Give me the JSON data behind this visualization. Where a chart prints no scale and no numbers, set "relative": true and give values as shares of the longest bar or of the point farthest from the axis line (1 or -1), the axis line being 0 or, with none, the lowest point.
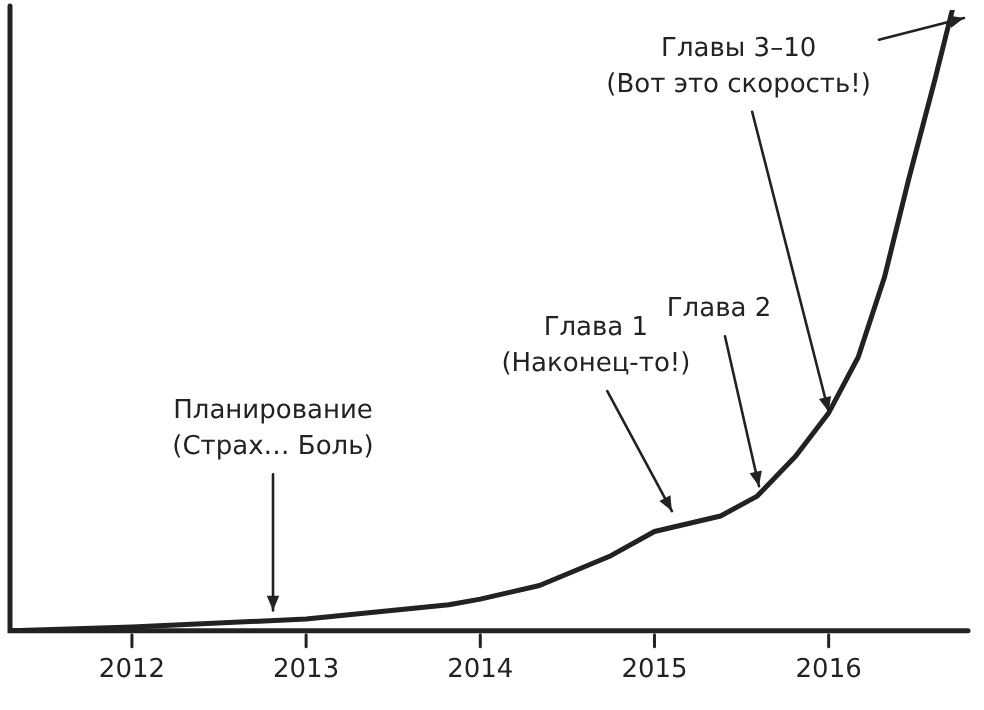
{
  "chart_data": {
    "type": "line",
    "relative": true,
    "color": "#222222",
    "x": [
      2011.31,
      2012,
      2013,
      2013.82,
      2014,
      2014.34,
      2014.75,
      2015,
      2015.38,
      2015.59,
      2015.81,
      2016,
      2016.17,
      2016.32,
      2016.46,
      2016.61,
      2016.71
    ],
    "values": [
      0,
      0.006,
      0.019,
      0.042,
      0.051,
      0.073,
      0.121,
      0.16,
      0.185,
      0.217,
      0.281,
      0.351,
      0.441,
      0.569,
      0.728,
      0.888,
      1
    ],
    "xlim": [
      2011.3,
      2016.8
    ],
    "xticks": [
      2012,
      2013,
      2014,
      2015,
      2016
    ],
    "grid": false,
    "legend": false,
    "marker": "none",
    "line_style": "solid",
    "annotations": [
      {
        "text": "Планирование\n(Страх… Боль)",
        "x": 2012.81,
        "y": 0.02
      },
      {
        "text": "Глава 1\n(Наконец-то!)",
        "x": 2015.1,
        "y": 0.18
      },
      {
        "text": "Глава 2",
        "x": 2015.6,
        "y": 0.22
      },
      {
        "text": "Главы 3–10\n(Вот это скорость!)",
        "x": 2016,
        "y": 0.34
      }
    ]
  }
}
